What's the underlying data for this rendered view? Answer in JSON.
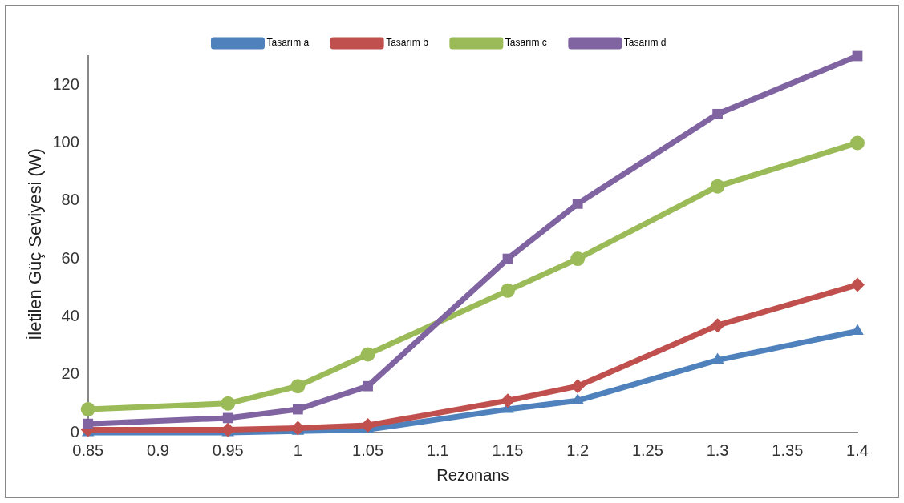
{
  "chart_data": {
    "type": "line",
    "xlabel": "Rezonans",
    "ylabel": "İletilen Güç Seviyesi (W)",
    "x": [
      0.85,
      0.95,
      1,
      1.05,
      1.15,
      1.2,
      1.3,
      1.4
    ],
    "series": [
      {
        "name": "Tasarım a",
        "color": "#4f81bd",
        "marker": "triangle",
        "values": [
          0,
          0,
          0.5,
          1,
          8,
          11,
          25,
          35
        ]
      },
      {
        "name": "Tasarım b",
        "color": "#c0504d",
        "marker": "diamond",
        "values": [
          1,
          1,
          1.5,
          2.5,
          11,
          16,
          37,
          51
        ]
      },
      {
        "name": "Tasarım c",
        "color": "#9bbb59",
        "marker": "circle",
        "values": [
          8,
          10,
          16,
          27,
          49,
          60,
          85,
          100
        ]
      },
      {
        "name": "Tasarım d",
        "color": "#8064a2",
        "marker": "square",
        "values": [
          3,
          5,
          8,
          16,
          60,
          79,
          110,
          130
        ]
      }
    ],
    "xlim": [
      0.85,
      1.4
    ],
    "xticks": [
      0.85,
      0.9,
      0.95,
      1,
      1.05,
      1.1,
      1.15,
      1.2,
      1.25,
      1.3,
      1.35,
      1.4
    ],
    "ylim": [
      0,
      130
    ],
    "yticks": [
      0,
      20,
      40,
      60,
      80,
      100,
      120
    ],
    "grid": false,
    "legend": "top",
    "line_style": "solid"
  }
}
